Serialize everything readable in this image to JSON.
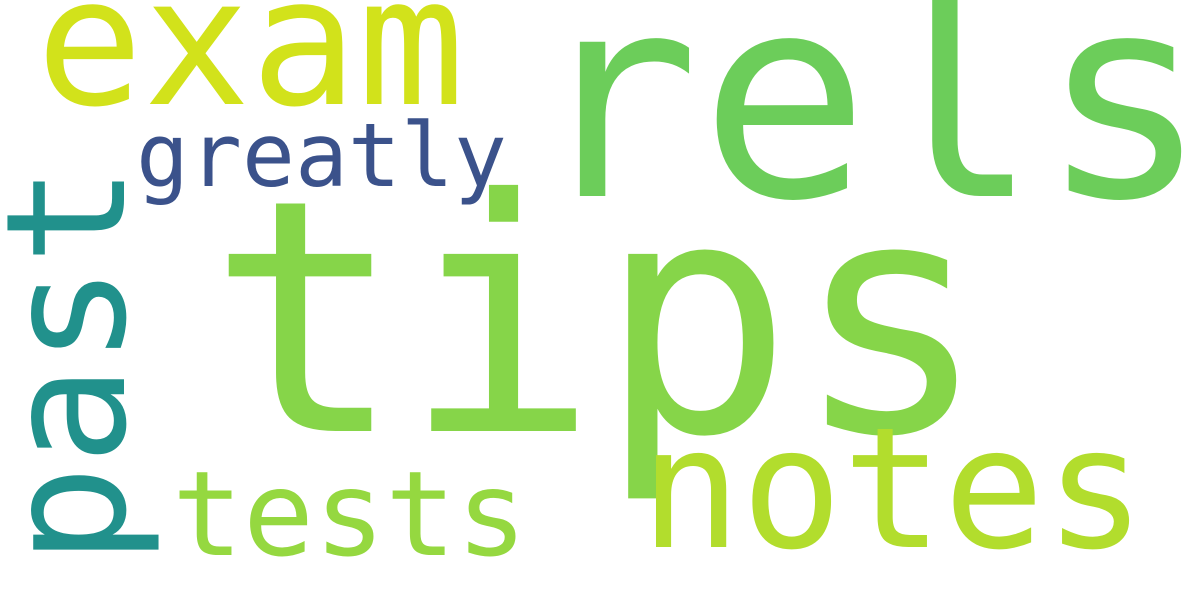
{
  "words": [
    {
      "text": "tips",
      "color": "#86d549"
    },
    {
      "text": "rels",
      "color": "#6ccd5a"
    },
    {
      "text": "exam",
      "color": "#d2e21b"
    },
    {
      "text": "notes",
      "color": "#b2dd2d"
    },
    {
      "text": "past",
      "color": "#21918c"
    },
    {
      "text": "tests",
      "color": "#95d840"
    },
    {
      "text": "greatly",
      "color": "#3b528b"
    }
  ]
}
